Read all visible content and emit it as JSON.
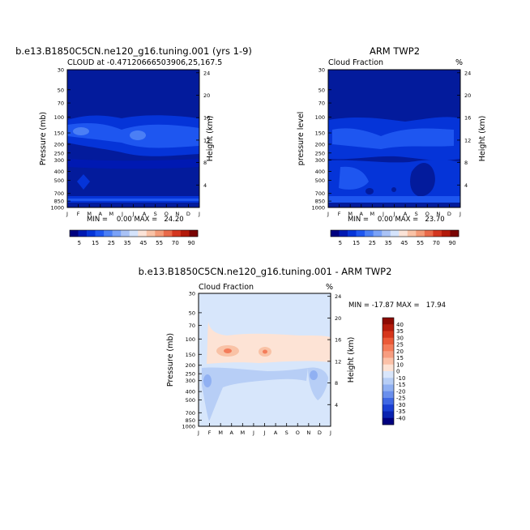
{
  "chart_data": [
    {
      "type": "heatmap",
      "title": "b.e13.B1850C5CN.ne120_g16.tuning.001 (yrs 1-9)",
      "subtitle": "CLOUD at -0.47120666503906,25,167.5",
      "ylabel_left": "Pressure (mb)",
      "ylabel_right": "Height (km)",
      "xlabel": "",
      "x": [
        "J",
        "F",
        "M",
        "A",
        "M",
        "J",
        "J",
        "A",
        "S",
        "O",
        "N",
        "D",
        "J"
      ],
      "y_pressure_ticks": [
        "30",
        "50",
        "70",
        "100",
        "150",
        "200",
        "250",
        "300",
        "400",
        "500",
        "700",
        "850",
        "1000"
      ],
      "y_height_ticks": [
        "24",
        "20",
        "16",
        "12",
        "8",
        "4"
      ],
      "stats": {
        "label": "MIN =    0.00 MAX =   24.20",
        "min": 0.0,
        "max": 24.2
      },
      "colorbar": {
        "levels": [
          "5",
          "15",
          "25",
          "35",
          "45",
          "55",
          "70",
          "90"
        ]
      },
      "ylim": [
        1000,
        30
      ],
      "description_values": "Cloud fraction max ~24 near 100-150 mb, secondary layer near surface"
    },
    {
      "type": "heatmap",
      "title": "ARM TWP2",
      "subtitle": "Cloud Fraction",
      "units": "%",
      "ylabel_left": "pressure level",
      "ylabel_right": "Height (km)",
      "x": [
        "J",
        "F",
        "M",
        "A",
        "M",
        "J",
        "J",
        "A",
        "S",
        "O",
        "N",
        "D",
        "J"
      ],
      "y_pressure_ticks": [
        "30",
        "50",
        "70",
        "100",
        "150",
        "200",
        "250",
        "300",
        "400",
        "500",
        "700",
        "850",
        "1000"
      ],
      "y_height_ticks": [
        "24",
        "20",
        "16",
        "12",
        "8",
        "4"
      ],
      "stats": {
        "label": "MIN =    0.00 MAX =   23.70",
        "min": 0.0,
        "max": 23.7
      },
      "colorbar": {
        "levels": [
          "5",
          "15",
          "25",
          "35",
          "45",
          "55",
          "70",
          "90"
        ]
      },
      "ylim": [
        1000,
        30
      ]
    },
    {
      "type": "heatmap",
      "title": "b.e13.B1850C5CN.ne120_g16.tuning.001 - ARM TWP2",
      "subtitle": "Cloud Fraction",
      "units": "%",
      "ylabel_left": "Pressure (mb)",
      "ylabel_right": "Height (km)",
      "x": [
        "J",
        "F",
        "M",
        "A",
        "M",
        "J",
        "J",
        "A",
        "S",
        "O",
        "N",
        "D",
        "J"
      ],
      "y_pressure_ticks": [
        "30",
        "50",
        "70",
        "100",
        "150",
        "200",
        "250",
        "300",
        "400",
        "500",
        "700",
        "850",
        "1000"
      ],
      "y_height_ticks": [
        "24",
        "20",
        "16",
        "12",
        "8",
        "4"
      ],
      "stats": {
        "label": "MIN = -17.87 MAX =   17.94",
        "min": -17.87,
        "max": 17.94
      },
      "colorbar": {
        "levels": [
          "40",
          "35",
          "30",
          "25",
          "20",
          "15",
          "10",
          "0",
          "-10",
          "-15",
          "-20",
          "-25",
          "-30",
          "-35",
          "-40"
        ]
      },
      "ylim": [
        1000,
        30
      ]
    }
  ],
  "colors": {
    "seq": [
      "#00007f",
      "#0019b2",
      "#0534d8",
      "#1e56f0",
      "#4b7ff5",
      "#7aa2f7",
      "#a9c2f6",
      "#d4e3fb",
      "#fbe3d7",
      "#f9c2a6",
      "#f39b78",
      "#e96a4a",
      "#d43720",
      "#b31a0a",
      "#7a0403"
    ],
    "div": [
      "#8c0a02",
      "#b51c0c",
      "#d6361c",
      "#eb5a38",
      "#f47c5a",
      "#f79d80",
      "#fbc1a8",
      "#fde3d5",
      "#d9e6fb",
      "#b7cef6",
      "#90b0f2",
      "#6a8fec",
      "#3f67e3",
      "#1a3fd3",
      "#0a23b0",
      "#00007f"
    ],
    "bg_low": "#0a1fa6",
    "diff_bg": "#d7e6fb"
  }
}
